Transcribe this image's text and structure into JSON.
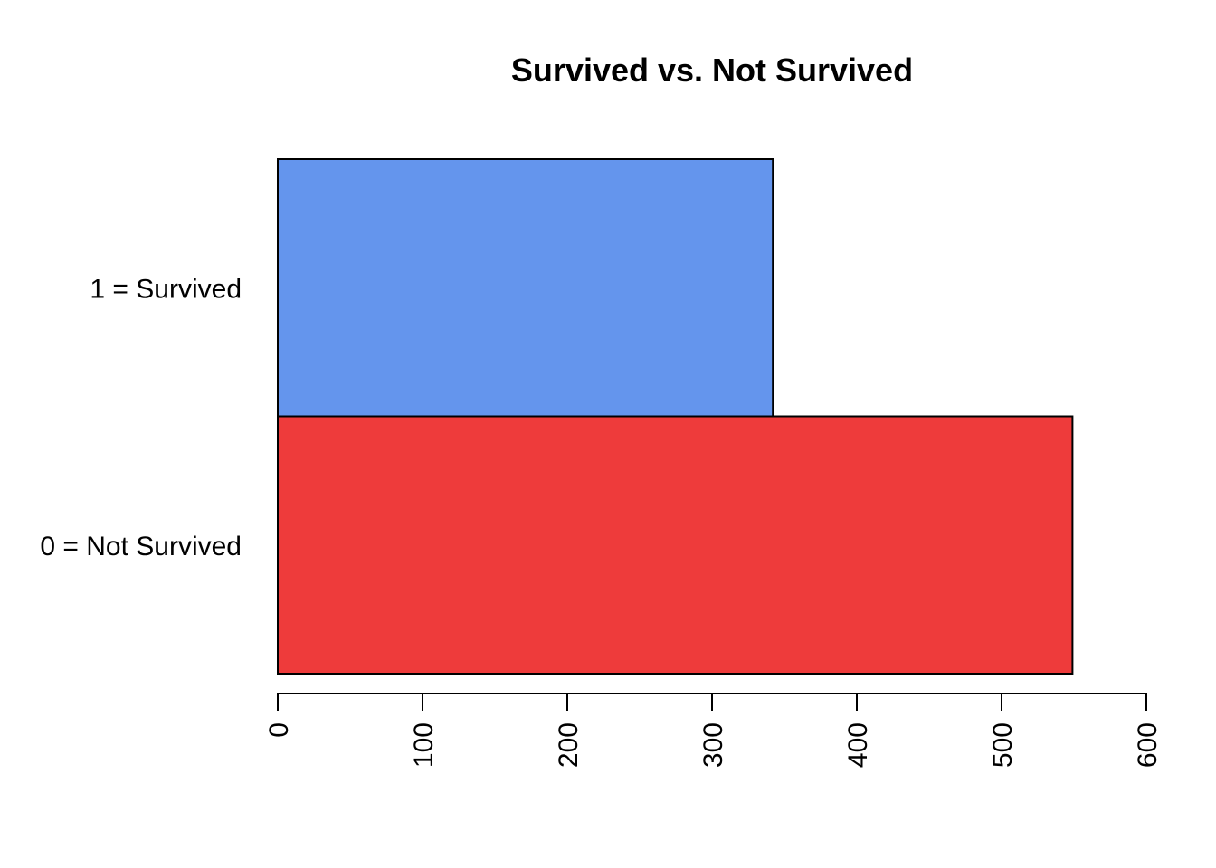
{
  "chart_data": {
    "type": "bar",
    "orientation": "horizontal",
    "title": "Survived vs. Not Survived",
    "xlabel": "",
    "ylabel": "",
    "categories": [
      "0 = Not Survived",
      "1 = Survived"
    ],
    "values": [
      549,
      342
    ],
    "colors": [
      "#EE3B3B",
      "#6495ED"
    ],
    "xlim": [
      0,
      600
    ],
    "xticks": [
      0,
      100,
      200,
      300,
      400,
      500,
      600
    ],
    "tick_label_rotation": "vertical",
    "grid": false,
    "legend": "none"
  }
}
